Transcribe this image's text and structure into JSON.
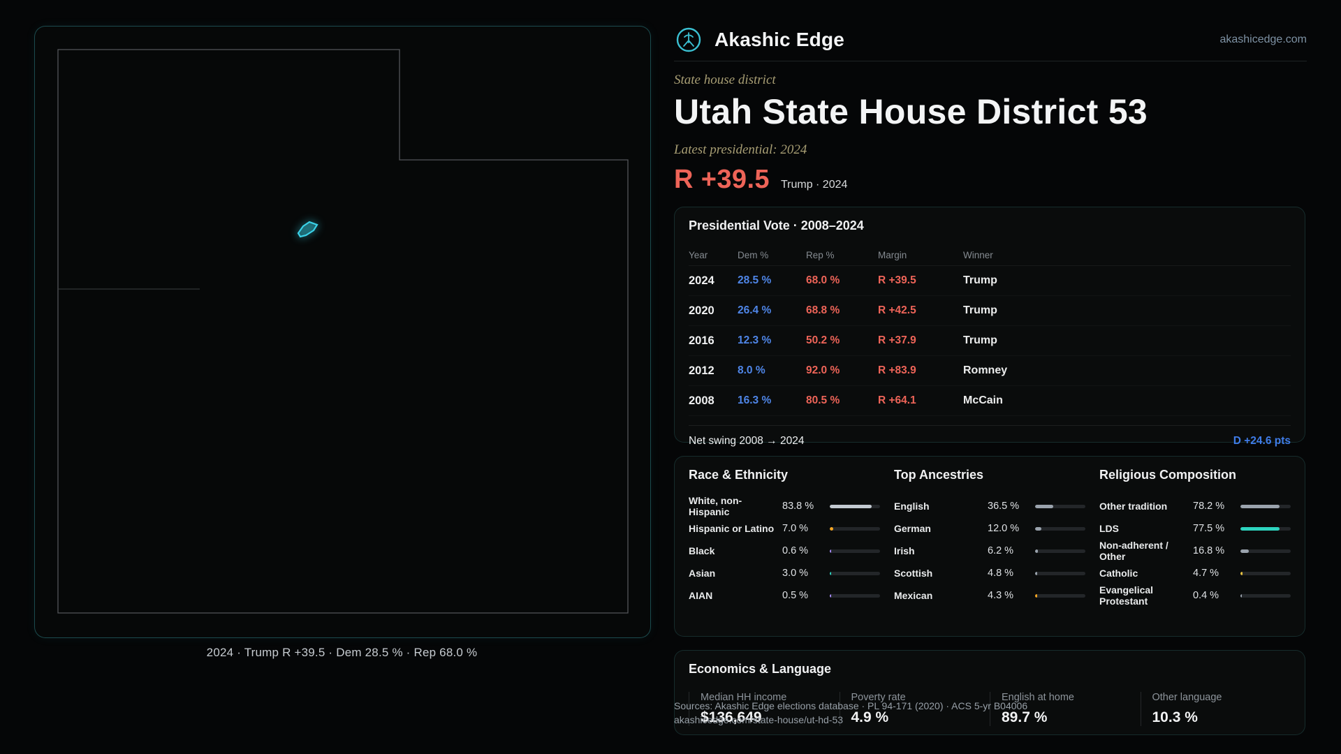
{
  "brand": {
    "name": "Akashic Edge",
    "domain": "akashicedge.com"
  },
  "header": {
    "kicker": "State house district",
    "title": "Utah State House District 53",
    "latest_label": "Latest presidential: 2024",
    "margin_big": "R +39.5",
    "margin_context": "Trump · 2024"
  },
  "map": {
    "caption": "2024 · Trump R +39.5 · Dem 28.5 % · Rep 68.0 %",
    "district_icon": "district-53-highlight"
  },
  "presidential": {
    "title": "Presidential Vote · 2008–2024",
    "columns": [
      "Year",
      "Dem %",
      "Rep %",
      "Margin",
      "Winner"
    ],
    "rows": [
      {
        "year": "2024",
        "dem": "28.5 %",
        "rep": "68.0 %",
        "margin": "R +39.5",
        "winner": "Trump"
      },
      {
        "year": "2020",
        "dem": "26.4 %",
        "rep": "68.8 %",
        "margin": "R +42.5",
        "winner": "Trump"
      },
      {
        "year": "2016",
        "dem": "12.3 %",
        "rep": "50.2 %",
        "margin": "R +37.9",
        "winner": "Trump"
      },
      {
        "year": "2012",
        "dem": "8.0 %",
        "rep": "92.0 %",
        "margin": "R +83.9",
        "winner": "Romney"
      },
      {
        "year": "2008",
        "dem": "16.3 %",
        "rep": "80.5 %",
        "margin": "R +64.1",
        "winner": "McCain"
      }
    ],
    "net_swing_label": "Net swing 2008 → 2024",
    "net_swing_value": "D +24.6 pts"
  },
  "demographics": {
    "race": {
      "title": "Race & Ethnicity",
      "rows": [
        {
          "label": "White, non-Hispanic",
          "value": "83.8 %",
          "pct": 83.8,
          "color": "#c3cad1"
        },
        {
          "label": "Hispanic or Latino",
          "value": "7.0 %",
          "pct": 7.0,
          "color": "#f5a623"
        },
        {
          "label": "Black",
          "value": "0.6 %",
          "pct": 0.6,
          "color": "#a78bfa"
        },
        {
          "label": "Asian",
          "value": "3.0 %",
          "pct": 3.0,
          "color": "#2dd4bf"
        },
        {
          "label": "AIAN",
          "value": "0.5 %",
          "pct": 0.5,
          "color": "#a78bfa"
        }
      ]
    },
    "ancestries": {
      "title": "Top Ancestries",
      "rows": [
        {
          "label": "English",
          "value": "36.5 %",
          "pct": 36.5,
          "color": "#9aa3ad"
        },
        {
          "label": "German",
          "value": "12.0 %",
          "pct": 12.0,
          "color": "#9aa3ad"
        },
        {
          "label": "Irish",
          "value": "6.2 %",
          "pct": 6.2,
          "color": "#9aa3ad"
        },
        {
          "label": "Scottish",
          "value": "4.8 %",
          "pct": 4.8,
          "color": "#9aa3ad"
        },
        {
          "label": "Mexican",
          "value": "4.3 %",
          "pct": 4.3,
          "color": "#f5a623"
        }
      ]
    },
    "religion": {
      "title": "Religious Composition",
      "rows": [
        {
          "label": "Other tradition",
          "value": "78.2 %",
          "pct": 78.2,
          "color": "#9aa3ad"
        },
        {
          "label": "LDS",
          "value": "77.5 %",
          "pct": 77.5,
          "color": "#2dd4bf"
        },
        {
          "label": "Non-adherent / Other",
          "value": "16.8 %",
          "pct": 16.8,
          "color": "#9aa3ad"
        },
        {
          "label": "Catholic",
          "value": "4.7 %",
          "pct": 4.7,
          "color": "#e8c341"
        },
        {
          "label": "Evangelical Protestant",
          "value": "0.4 %",
          "pct": 0.4,
          "color": "#9aa3ad"
        }
      ]
    }
  },
  "economics": {
    "title": "Economics & Language",
    "stats": [
      {
        "label": "Median HH income",
        "value": "$136,649"
      },
      {
        "label": "Poverty rate",
        "value": "4.9 %"
      },
      {
        "label": "English at home",
        "value": "89.7 %"
      },
      {
        "label": "Other language",
        "value": "10.3 %"
      }
    ]
  },
  "footer": {
    "sources": "Sources: Akashic Edge elections database · PL 94-171 (2020) · ACS 5-yr B04006",
    "permalink": "akashicedge.com/state-house/ut-hd-53"
  },
  "colors": {
    "dem": "#4f86e8",
    "rep": "#ee6458",
    "swing": "#3f7ce8",
    "accent": "#3bc0d2",
    "tan": "#a89e74"
  }
}
